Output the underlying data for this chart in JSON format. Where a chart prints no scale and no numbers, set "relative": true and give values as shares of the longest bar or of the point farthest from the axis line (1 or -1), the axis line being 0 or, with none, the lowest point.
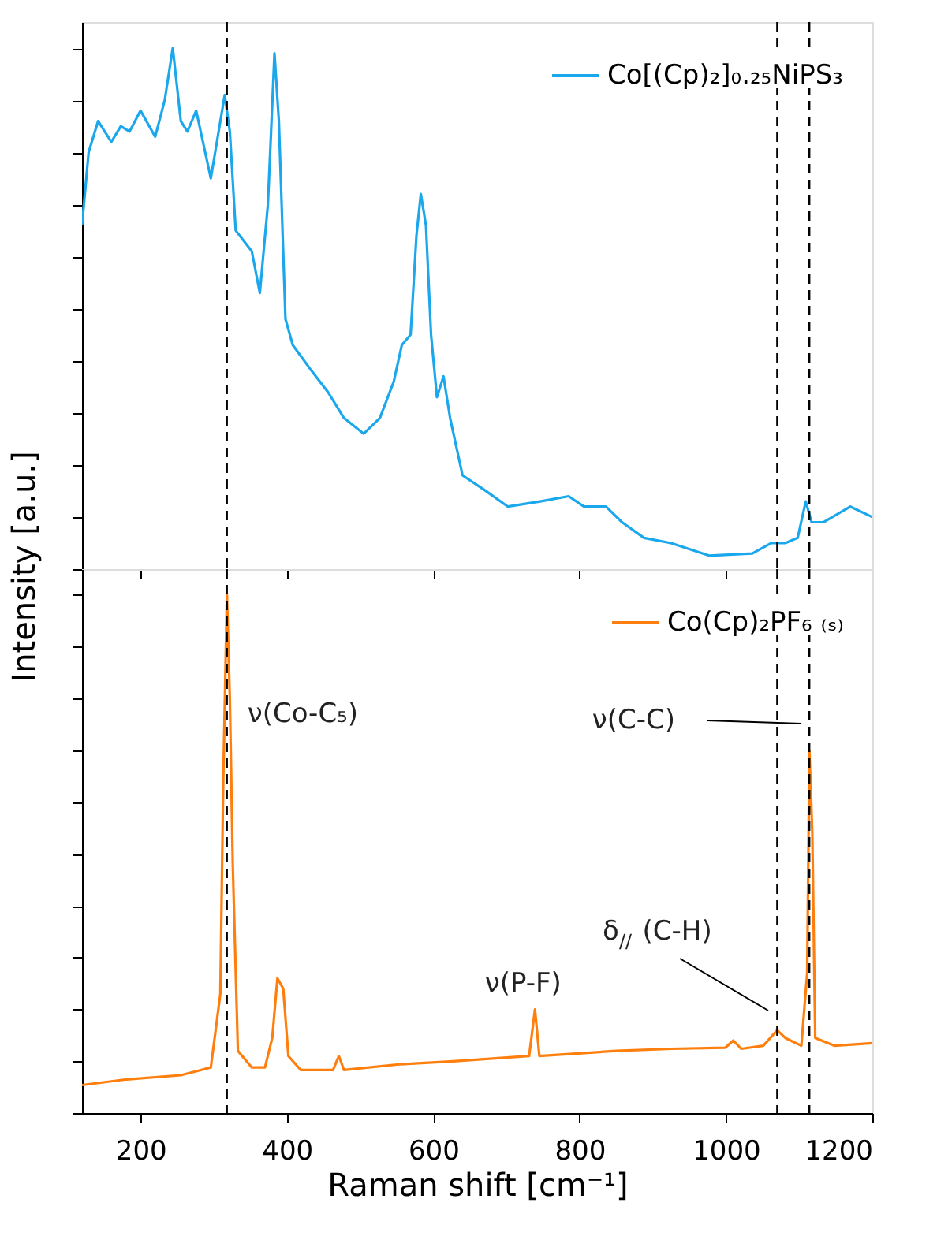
{
  "chart_data": [
    {
      "type": "line",
      "relative": true,
      "ylabel": "Intensity [a.u.]",
      "xlim": [
        120,
        1200
      ],
      "xticks": [
        200,
        400,
        600,
        800,
        1000,
        1200
      ],
      "tick_labels": false,
      "legend": "top right",
      "grid": false,
      "line_style": "solid",
      "ref_lines": [
        {
          "axis": "x",
          "value": 318,
          "color": "#000000",
          "line_style": "dashed"
        },
        {
          "axis": "x",
          "value": 1070,
          "color": "#000000",
          "line_style": "dashed"
        },
        {
          "axis": "x",
          "value": 1114,
          "color": "#000000",
          "line_style": "dashed"
        }
      ],
      "series": [
        {
          "name": "Co[(Cp)₂]₀.₂₅NiPS₃",
          "color": "#1aa7ec",
          "x": [
            120,
            129,
            142,
            160,
            173,
            185,
            200,
            220,
            233,
            244,
            255,
            264,
            276,
            296,
            315,
            322,
            330,
            341,
            352,
            363,
            374,
            383,
            389,
            398,
            408,
            434,
            456,
            478,
            505,
            527,
            546,
            557,
            569,
            577,
            583,
            590,
            597,
            605,
            614,
            623,
            640,
            672,
            702,
            746,
            785,
            806,
            836,
            858,
            888,
            925,
            977,
            1036,
            1062,
            1081,
            1098,
            1109,
            1117,
            1133,
            1170,
            1200
          ],
          "values": [
            0.66,
            0.8,
            0.86,
            0.82,
            0.85,
            0.84,
            0.88,
            0.83,
            0.9,
            1.0,
            0.86,
            0.84,
            0.88,
            0.75,
            0.91,
            0.84,
            0.65,
            0.63,
            0.61,
            0.53,
            0.7,
            0.99,
            0.86,
            0.48,
            0.43,
            0.38,
            0.34,
            0.29,
            0.26,
            0.29,
            0.36,
            0.43,
            0.45,
            0.64,
            0.72,
            0.66,
            0.45,
            0.33,
            0.37,
            0.29,
            0.18,
            0.15,
            0.12,
            0.13,
            0.14,
            0.12,
            0.12,
            0.09,
            0.06,
            0.05,
            0.026,
            0.03,
            0.05,
            0.05,
            0.06,
            0.13,
            0.09,
            0.09,
            0.12,
            0.1
          ]
        }
      ]
    },
    {
      "type": "line",
      "relative": true,
      "xlabel": "Raman shift [cm⁻¹]",
      "xlim": [
        120,
        1200
      ],
      "xticks": [
        200,
        400,
        600,
        800,
        1000,
        1200
      ],
      "tick_labels": "x",
      "legend": "top right",
      "grid": false,
      "line_style": "solid",
      "ref_lines": [
        {
          "axis": "x",
          "value": 318,
          "color": "#000000",
          "line_style": "dashed"
        },
        {
          "axis": "x",
          "value": 1070,
          "color": "#000000",
          "line_style": "dashed"
        },
        {
          "axis": "x",
          "value": 1114,
          "color": "#000000",
          "line_style": "dashed"
        }
      ],
      "annotations": [
        "ν(Co-C₅)",
        "ν(C-C)",
        "ν(P-F)",
        "δ$_{//}$(C-H)"
      ],
      "series": [
        {
          "name": "Co(Cp)₂PF₆ ₍ₛ₎",
          "color": "#ff7f0e",
          "x": [
            120,
            181,
            255,
            296,
            309,
            313,
            318,
            322,
            326,
            333,
            352,
            370,
            380,
            387,
            395,
            402,
            419,
            463,
            471,
            478,
            553,
            627,
            731,
            739,
            745,
            850,
            925,
            999,
            1010,
            1021,
            1051,
            1070,
            1081,
            1103,
            1111,
            1114,
            1118,
            1122,
            1148,
            1200
          ],
          "values": [
            0.054,
            0.065,
            0.073,
            0.088,
            0.23,
            0.64,
            1.0,
            0.8,
            0.48,
            0.12,
            0.088,
            0.088,
            0.145,
            0.26,
            0.24,
            0.11,
            0.083,
            0.083,
            0.11,
            0.083,
            0.094,
            0.1,
            0.11,
            0.2,
            0.11,
            0.12,
            0.124,
            0.126,
            0.14,
            0.124,
            0.13,
            0.16,
            0.145,
            0.13,
            0.27,
            0.7,
            0.54,
            0.145,
            0.13,
            0.135
          ]
        }
      ]
    }
  ]
}
